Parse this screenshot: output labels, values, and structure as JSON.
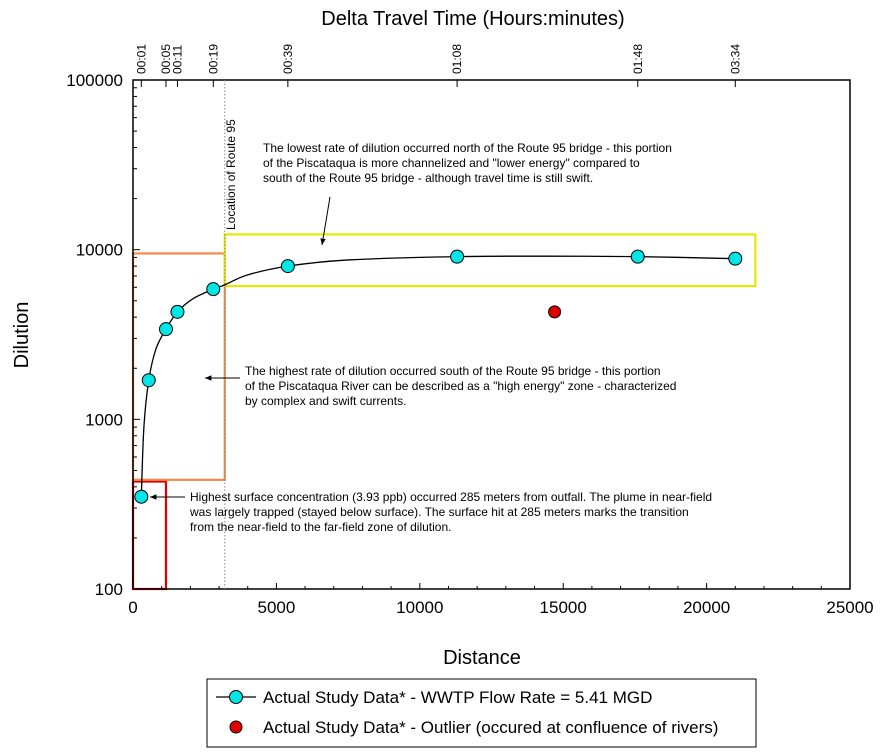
{
  "chart_data": {
    "type": "scatter",
    "title": "",
    "top_axis_label": "Delta Travel Time (Hours:minutes)",
    "xlabel": "Distance",
    "ylabel": "Dilution",
    "xlim": [
      0,
      25000
    ],
    "ylim": [
      100,
      100000
    ],
    "y_scale": "log",
    "x_ticks": [
      "0",
      "5000",
      "10000",
      "15000",
      "20000",
      "25000"
    ],
    "x_tick_values": [
      0,
      5000,
      10000,
      15000,
      20000,
      25000
    ],
    "y_ticks": [
      "100",
      "1000",
      "10000",
      "100000"
    ],
    "y_tick_values": [
      100,
      1000,
      10000,
      100000
    ],
    "top_ticks": [
      {
        "x": 290,
        "label": "00:01"
      },
      {
        "x": 1150,
        "label": "00:05"
      },
      {
        "x": 1550,
        "label": "00:11"
      },
      {
        "x": 2800,
        "label": "00:19"
      },
      {
        "x": 5400,
        "label": "00:39"
      },
      {
        "x": 11300,
        "label": "01:08"
      },
      {
        "x": 17600,
        "label": "01:48"
      },
      {
        "x": 21000,
        "label": "03:34"
      }
    ],
    "grid": false,
    "legend_position": "bottom",
    "series": [
      {
        "name": "Actual Study Data* - WWTP Flow Rate = 5.41 MGD",
        "color": "#00e5e5",
        "x": [
          290,
          550,
          1150,
          1550,
          2800,
          5400,
          11300,
          17600,
          21000
        ],
        "y": [
          350,
          1700,
          3400,
          4300,
          5850,
          8000,
          9100,
          9100,
          8850
        ]
      },
      {
        "name": "Actual Study Data* - Outlier (occured at confluence of rivers)",
        "color": "#e00000",
        "x": [
          14700
        ],
        "y": [
          4300
        ]
      }
    ],
    "fit_curve": [
      [
        290,
        350
      ],
      [
        380,
        900
      ],
      [
        550,
        1700
      ],
      [
        800,
        2600
      ],
      [
        1150,
        3400
      ],
      [
        1550,
        4300
      ],
      [
        2100,
        5150
      ],
      [
        2800,
        5850
      ],
      [
        3200,
        6200
      ],
      [
        4000,
        7100
      ],
      [
        5400,
        8000
      ],
      [
        7500,
        8700
      ],
      [
        11300,
        9100
      ],
      [
        14500,
        9150
      ],
      [
        17600,
        9100
      ],
      [
        21000,
        8850
      ]
    ],
    "vertical_marker": {
      "x": 3200,
      "label": "Location of Route 95"
    },
    "regions": [
      {
        "x": [
          0,
          1150
        ],
        "y": [
          100,
          430
        ],
        "color": "#e00000"
      },
      {
        "x": [
          0,
          3200
        ],
        "y": [
          440,
          9500
        ],
        "color": "#f5894b"
      },
      {
        "x": [
          3200,
          21700
        ],
        "y": [
          6100,
          12300
        ],
        "color": "#e6e600"
      }
    ],
    "annotations": [
      {
        "lines": [
          "The lowest rate of dilution occurred north of the Route 95 bridge - this portion",
          "of the Piscataqua is more channelized and \"lower energy\" compared to",
          "south of the Route 95 bridge - although travel time is still swift."
        ]
      },
      {
        "lines": [
          "The highest rate of dilution occurred south of the Route 95 bridge - this portion",
          "of the Piscataqua River can be described as a \"high energy\" zone - characterized",
          "by complex and swift currents."
        ]
      },
      {
        "lines": [
          "Highest surface concentration (3.93 ppb) occurred 285 meters from outfall. The plume in near-field",
          "was largely trapped (stayed below surface).  The surface hit at 285 meters marks the transition",
          "from the near-field to the far-field zone of dilution."
        ]
      }
    ]
  },
  "colors": {
    "series_fill": "#00e5e5",
    "outlier_fill": "#e00000",
    "red_box": "#e00000",
    "orange_box": "#f5894b",
    "yellow_box": "#e6e600"
  }
}
